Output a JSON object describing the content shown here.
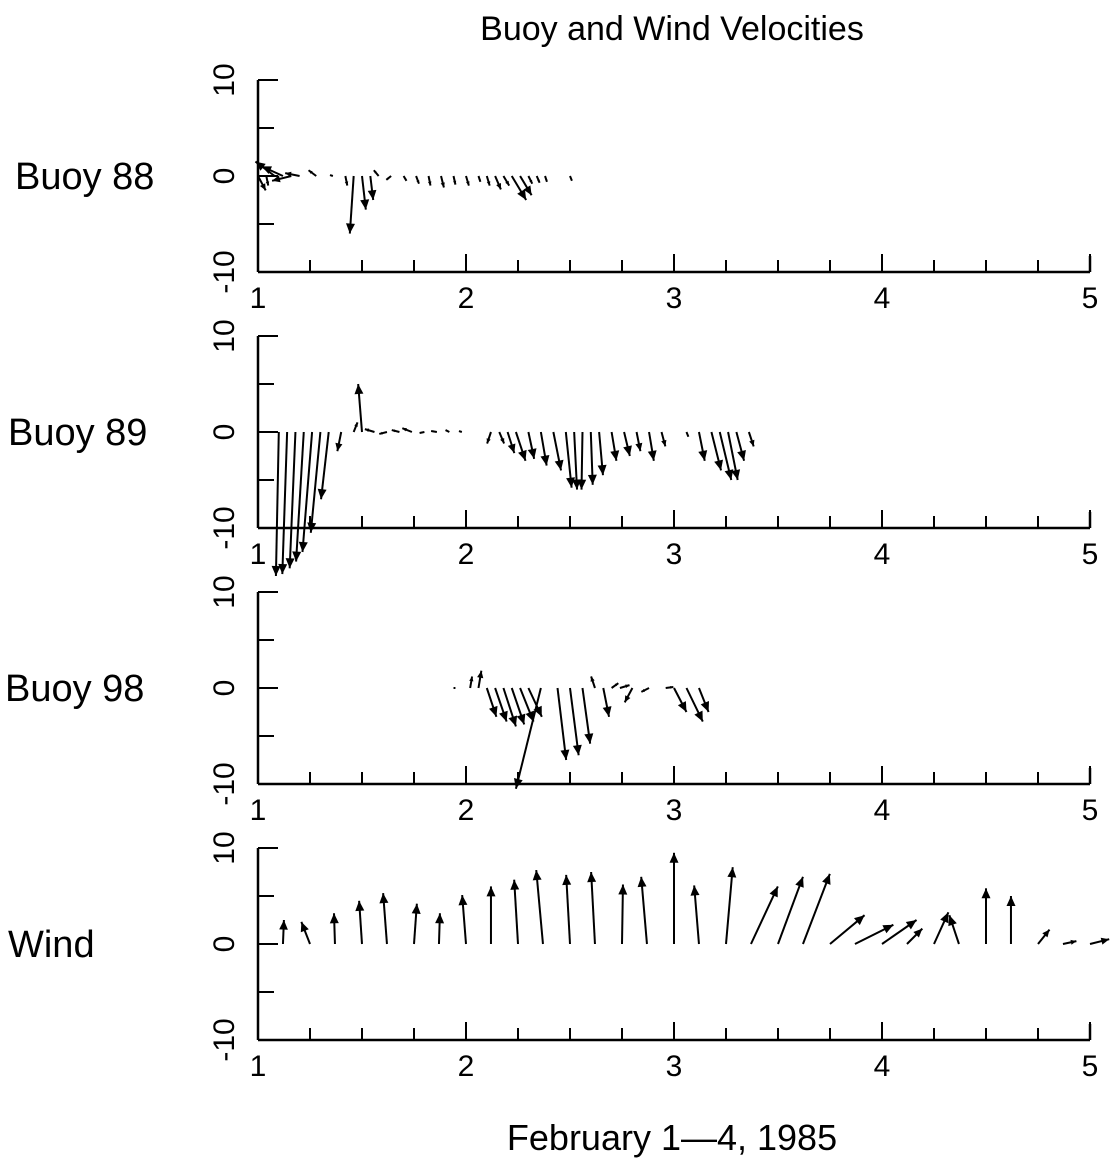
{
  "chart_data": {
    "type": "stick_plot",
    "title": "Buoy and Wind Velocities",
    "xlabel": "February 1—4, 1985",
    "xlim": [
      1,
      5
    ],
    "x_ticks": [
      1,
      2,
      3,
      4,
      5
    ],
    "x_tick_labels": [
      "1",
      "2",
      "3",
      "4",
      "5"
    ],
    "ylim": [
      -10,
      10
    ],
    "y_tick_labels": [
      "-10",
      "0",
      "10"
    ],
    "panels": [
      {
        "name": "Buoy 88",
        "vectors": [
          {
            "t": 1.0,
            "u": 0.8,
            "v": -1.5
          },
          {
            "t": 1.04,
            "u": 0.2,
            "v": -1.0
          },
          {
            "t": 1.08,
            "u": -2.0,
            "v": 1.5
          },
          {
            "t": 1.12,
            "u": -2.2,
            "v": 1.0
          },
          {
            "t": 1.16,
            "u": -2.0,
            "v": -0.5
          },
          {
            "t": 1.2,
            "u": -1.5,
            "v": 0.3
          },
          {
            "t": 1.28,
            "u": -0.8,
            "v": 0.6
          },
          {
            "t": 1.36,
            "u": -0.3,
            "v": 0.1
          },
          {
            "t": 1.42,
            "u": 0.2,
            "v": -1.0
          },
          {
            "t": 1.46,
            "u": -0.4,
            "v": -6.0
          },
          {
            "t": 1.5,
            "u": 0.4,
            "v": -3.5
          },
          {
            "t": 1.54,
            "u": 0.3,
            "v": -2.5
          },
          {
            "t": 1.58,
            "u": -0.5,
            "v": 0.6
          },
          {
            "t": 1.64,
            "u": -0.5,
            "v": -0.4
          },
          {
            "t": 1.7,
            "u": 0.3,
            "v": -0.5
          },
          {
            "t": 1.76,
            "u": 0.3,
            "v": -0.8
          },
          {
            "t": 1.82,
            "u": 0.2,
            "v": -1.0
          },
          {
            "t": 1.88,
            "u": 0.3,
            "v": -1.2
          },
          {
            "t": 1.94,
            "u": 0.2,
            "v": -0.9
          },
          {
            "t": 2.0,
            "u": 0.3,
            "v": -1.0
          },
          {
            "t": 2.06,
            "u": 0.2,
            "v": -0.6
          },
          {
            "t": 2.1,
            "u": 0.3,
            "v": -1.0
          },
          {
            "t": 2.14,
            "u": 0.6,
            "v": -1.4
          },
          {
            "t": 2.18,
            "u": 0.6,
            "v": -1.0
          },
          {
            "t": 2.22,
            "u": 1.5,
            "v": -2.5
          },
          {
            "t": 2.26,
            "u": 1.2,
            "v": -2.0
          },
          {
            "t": 2.3,
            "u": 0.4,
            "v": -0.8
          },
          {
            "t": 2.34,
            "u": 0.3,
            "v": -0.7
          },
          {
            "t": 2.38,
            "u": 0.2,
            "v": -0.6
          },
          {
            "t": 2.5,
            "u": 0.2,
            "v": -0.5
          }
        ]
      },
      {
        "name": "Buoy 89",
        "vectors": [
          {
            "t": 1.1,
            "u": -0.3,
            "v": -15.0
          },
          {
            "t": 1.14,
            "u": -0.5,
            "v": -14.8
          },
          {
            "t": 1.18,
            "u": -0.6,
            "v": -14.2
          },
          {
            "t": 1.22,
            "u": -0.8,
            "v": -13.5
          },
          {
            "t": 1.26,
            "u": -1.0,
            "v": -12.5
          },
          {
            "t": 1.3,
            "u": -1.0,
            "v": -10.5
          },
          {
            "t": 1.34,
            "u": -0.8,
            "v": -7.0
          },
          {
            "t": 1.4,
            "u": -0.4,
            "v": -2.0
          },
          {
            "t": 1.46,
            "u": 0.4,
            "v": 1.0
          },
          {
            "t": 1.5,
            "u": -0.4,
            "v": 5.0
          },
          {
            "t": 1.56,
            "u": -1.0,
            "v": 0.3
          },
          {
            "t": 1.62,
            "u": -0.8,
            "v": -0.2
          },
          {
            "t": 1.68,
            "u": -0.8,
            "v": 0.2
          },
          {
            "t": 1.74,
            "u": -1.0,
            "v": 0.4
          },
          {
            "t": 1.8,
            "u": -0.5,
            "v": -0.1
          },
          {
            "t": 1.86,
            "u": -0.6,
            "v": 0.1
          },
          {
            "t": 1.92,
            "u": -0.4,
            "v": 0.2
          },
          {
            "t": 1.98,
            "u": -0.3,
            "v": 0.1
          },
          {
            "t": 2.12,
            "u": -0.4,
            "v": -1.2
          },
          {
            "t": 2.16,
            "u": 0.5,
            "v": -1.2
          },
          {
            "t": 2.2,
            "u": 0.7,
            "v": -2.2
          },
          {
            "t": 2.24,
            "u": 1.0,
            "v": -3.0
          },
          {
            "t": 2.3,
            "u": 0.6,
            "v": -2.8
          },
          {
            "t": 2.36,
            "u": 0.6,
            "v": -3.5
          },
          {
            "t": 2.42,
            "u": 0.8,
            "v": -4.0
          },
          {
            "t": 2.48,
            "u": 0.6,
            "v": -5.8
          },
          {
            "t": 2.52,
            "u": 0.3,
            "v": -6.0
          },
          {
            "t": 2.56,
            "u": -0.1,
            "v": -6.0
          },
          {
            "t": 2.6,
            "u": 0.2,
            "v": -5.5
          },
          {
            "t": 2.64,
            "u": 0.4,
            "v": -4.5
          },
          {
            "t": 2.7,
            "u": 0.5,
            "v": -3.0
          },
          {
            "t": 2.76,
            "u": 0.6,
            "v": -2.5
          },
          {
            "t": 2.82,
            "u": 0.4,
            "v": -2.0
          },
          {
            "t": 2.88,
            "u": 0.5,
            "v": -3.0
          },
          {
            "t": 2.94,
            "u": 0.4,
            "v": -1.5
          },
          {
            "t": 3.06,
            "u": 0.2,
            "v": -0.5
          },
          {
            "t": 3.12,
            "u": 0.6,
            "v": -3.0
          },
          {
            "t": 3.18,
            "u": 1.0,
            "v": -4.0
          },
          {
            "t": 3.22,
            "u": 1.2,
            "v": -5.0
          },
          {
            "t": 3.26,
            "u": 1.0,
            "v": -5.0
          },
          {
            "t": 3.3,
            "u": 0.8,
            "v": -3.0
          },
          {
            "t": 3.36,
            "u": 0.5,
            "v": -1.5
          }
        ]
      },
      {
        "name": "Buoy 98",
        "vectors": [
          {
            "t": 1.94,
            "u": 0.2,
            "v": 0.0
          },
          {
            "t": 2.02,
            "u": 0.2,
            "v": 1.2
          },
          {
            "t": 2.06,
            "u": 0.3,
            "v": 1.8
          },
          {
            "t": 2.1,
            "u": 1.0,
            "v": -3.0
          },
          {
            "t": 2.14,
            "u": 1.2,
            "v": -3.5
          },
          {
            "t": 2.18,
            "u": 1.3,
            "v": -4.0
          },
          {
            "t": 2.22,
            "u": 1.3,
            "v": -3.8
          },
          {
            "t": 2.26,
            "u": 1.4,
            "v": -3.5
          },
          {
            "t": 2.3,
            "u": 1.4,
            "v": -3.0
          },
          {
            "t": 2.36,
            "u": -2.6,
            "v": -10.5
          },
          {
            "t": 2.44,
            "u": 0.9,
            "v": -7.5
          },
          {
            "t": 2.5,
            "u": 0.9,
            "v": -7.0
          },
          {
            "t": 2.56,
            "u": 0.8,
            "v": -5.8
          },
          {
            "t": 2.62,
            "u": -0.4,
            "v": 1.2
          },
          {
            "t": 2.66,
            "u": 0.6,
            "v": -3.0
          },
          {
            "t": 2.7,
            "u": 0.7,
            "v": 0.5
          },
          {
            "t": 2.74,
            "u": 1.0,
            "v": 0.3
          },
          {
            "t": 2.8,
            "u": -0.8,
            "v": -1.5
          },
          {
            "t": 2.88,
            "u": -0.8,
            "v": -0.4
          },
          {
            "t": 2.96,
            "u": 0.8,
            "v": 0.1
          },
          {
            "t": 3.0,
            "u": 1.3,
            "v": -2.5
          },
          {
            "t": 3.06,
            "u": 1.7,
            "v": -3.5
          },
          {
            "t": 3.12,
            "u": 1.0,
            "v": -2.5
          }
        ]
      },
      {
        "name": "Wind",
        "vectors": [
          {
            "t": 1.12,
            "u": 0.1,
            "v": 2.5
          },
          {
            "t": 1.25,
            "u": -0.9,
            "v": 2.3
          },
          {
            "t": 1.37,
            "u": -0.1,
            "v": 3.2
          },
          {
            "t": 1.5,
            "u": -0.3,
            "v": 4.5
          },
          {
            "t": 1.62,
            "u": -0.4,
            "v": 5.3
          },
          {
            "t": 1.75,
            "u": 0.3,
            "v": 4.2
          },
          {
            "t": 1.87,
            "u": 0.1,
            "v": 3.2
          },
          {
            "t": 2.0,
            "u": -0.4,
            "v": 5.1
          },
          {
            "t": 2.12,
            "u": 0.0,
            "v": 6.0
          },
          {
            "t": 2.25,
            "u": -0.4,
            "v": 6.7
          },
          {
            "t": 2.37,
            "u": -0.7,
            "v": 7.7
          },
          {
            "t": 2.5,
            "u": -0.4,
            "v": 7.2
          },
          {
            "t": 2.62,
            "u": -0.4,
            "v": 7.5
          },
          {
            "t": 2.75,
            "u": 0.1,
            "v": 6.2
          },
          {
            "t": 2.87,
            "u": -0.6,
            "v": 7.0
          },
          {
            "t": 3.0,
            "u": 0.0,
            "v": 9.5
          },
          {
            "t": 3.12,
            "u": -0.5,
            "v": 6.1
          },
          {
            "t": 3.25,
            "u": 0.7,
            "v": 8.0
          },
          {
            "t": 3.37,
            "u": 2.8,
            "v": 6.0
          },
          {
            "t": 3.5,
            "u": 2.6,
            "v": 7.0
          },
          {
            "t": 3.62,
            "u": 2.8,
            "v": 7.3
          },
          {
            "t": 3.75,
            "u": 3.6,
            "v": 3.0
          },
          {
            "t": 3.87,
            "u": 4.0,
            "v": 2.0
          },
          {
            "t": 4.0,
            "u": 3.6,
            "v": 2.5
          },
          {
            "t": 4.12,
            "u": 1.6,
            "v": 1.6
          },
          {
            "t": 4.25,
            "u": 1.5,
            "v": 3.3
          },
          {
            "t": 4.37,
            "u": -1.0,
            "v": 3.0
          },
          {
            "t": 4.5,
            "u": 0.0,
            "v": 5.8
          },
          {
            "t": 4.62,
            "u": 0.0,
            "v": 5.0
          },
          {
            "t": 4.75,
            "u": 1.2,
            "v": 1.5
          },
          {
            "t": 4.87,
            "u": 1.4,
            "v": 0.3
          },
          {
            "t": 5.0,
            "u": 2.0,
            "v": 0.5
          }
        ]
      }
    ]
  }
}
